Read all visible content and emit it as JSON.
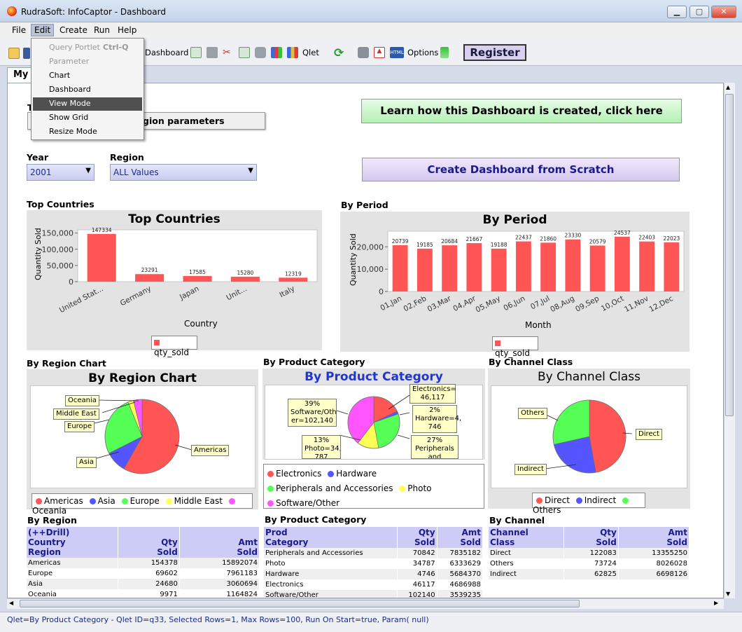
{
  "window": {
    "title": "RudraSoft: InfoCaptor - Dashboard"
  },
  "menubar": [
    "File",
    "Edit",
    "Create",
    "Run",
    "Help"
  ],
  "toolbar": {
    "dashboard_label": "Dashboard",
    "qlet_label": "Qlet",
    "options_label": "Options",
    "register_label": "Register"
  },
  "edit_menu": {
    "items": [
      {
        "label": "Query Portlet",
        "shortcut": "Ctrl-Q",
        "disabled": true
      },
      {
        "label": "Parameter",
        "disabled": true
      },
      {
        "label": "Chart"
      },
      {
        "label": "Dashboard"
      },
      {
        "label": "View Mode",
        "selected": true
      },
      {
        "label": "Show Grid"
      },
      {
        "label": "Resize Mode"
      }
    ]
  },
  "tab": {
    "label": "My"
  },
  "hidden_button": {
    "label_visible": "gion parameters",
    "prefix": "T"
  },
  "buttons": {
    "learn": "Learn how this Dashboard is created, click here",
    "scratch": "Create Dashboard from Scratch"
  },
  "filters": {
    "year_label": "Year",
    "year_value": "2001",
    "region_label": "Region",
    "region_value": "ALL Values"
  },
  "sections": {
    "top_countries": "Top Countries",
    "by_period": "By Period",
    "by_region_chart": "By Region Chart",
    "by_product_category": "By Product Category",
    "by_channel_class": "By Channel Class",
    "by_region": "By Region",
    "by_product_category_table": "By Product Category",
    "by_channel": "By Channel"
  },
  "chart_data": [
    {
      "id": "top_countries",
      "type": "bar",
      "title": "Top Countries",
      "xlabel": "Country",
      "ylabel": "Quantity Sold",
      "categories": [
        "United Stat...",
        "Germany",
        "Japan",
        "Unit...",
        "Italy"
      ],
      "values": [
        147334,
        23291,
        17585,
        15280,
        12319
      ],
      "labels": [
        "147334",
        "23291",
        "17585",
        "15280",
        "12319"
      ],
      "yticks": [
        "150,000",
        "100,000",
        "50,000",
        "0"
      ],
      "ylim": [
        0,
        160000
      ],
      "legend": "qty_sold",
      "color": "#ff5555"
    },
    {
      "id": "by_period",
      "type": "bar",
      "title": "By Period",
      "xlabel": "Month",
      "ylabel": "Quantity Sold",
      "categories": [
        "01,Jan",
        "02,Feb",
        "03,Mar",
        "04,Apr",
        "05,May",
        "06,Jun",
        "07,Jul",
        "08,Aug",
        "09,Sep",
        "10,Oct",
        "11,Nov",
        "12,Dec"
      ],
      "values": [
        20739,
        19185,
        20684,
        21667,
        19188,
        22437,
        21860,
        23330,
        20579,
        24537,
        22403,
        22023
      ],
      "labels": [
        "20739",
        "19185",
        "20684",
        "21667",
        "19188",
        "22437",
        "21860",
        "23330",
        "20579",
        "24537",
        "22403",
        "22023"
      ],
      "yticks": [
        "20,000",
        "10,000",
        "0"
      ],
      "ylim": [
        0,
        27000
      ],
      "legend": "qty_sold",
      "color": "#ff5555"
    },
    {
      "id": "by_region_chart",
      "type": "pie",
      "title": "By Region Chart",
      "categories": [
        "Americas",
        "Asia",
        "Europe",
        "Middle East",
        "Oceania"
      ],
      "values": [
        154378,
        24680,
        69602,
        6432,
        9971
      ],
      "colors": [
        "#ff5555",
        "#5555ff",
        "#55ff55",
        "#ffff55",
        "#ff55ff"
      ]
    },
    {
      "id": "by_product_category",
      "type": "pie",
      "title": "By Product Category",
      "categories": [
        "Electronics",
        "Hardware",
        "Peripherals and Accessories",
        "Photo",
        "Software/Other"
      ],
      "values": [
        46117,
        4746,
        70842,
        34787,
        102140
      ],
      "colors": [
        "#ff5555",
        "#5555ff",
        "#55ff55",
        "#ffff55",
        "#ff55ff"
      ],
      "annotations": {
        "electronics": [
          "Electronics=",
          "46,117"
        ],
        "hardware": [
          "2%",
          "Hardware=4,",
          "746"
        ],
        "peripherals": [
          "27%",
          "Peripherals",
          "and"
        ],
        "photo": [
          "13%",
          "Photo=34,",
          "787"
        ],
        "software": [
          "39%",
          "Software/Oth",
          "er=102,140"
        ]
      }
    },
    {
      "id": "by_channel_class",
      "type": "pie",
      "title": "By Channel Class",
      "categories": [
        "Direct",
        "Indirect",
        "Others"
      ],
      "values": [
        122083,
        62825,
        73724
      ],
      "colors": [
        "#ff5555",
        "#5555ff",
        "#55ff55"
      ]
    }
  ],
  "tables": {
    "by_region": {
      "headers": [
        "(++Drill)\nCountry\nRegion",
        "Qty\nSold",
        "Amt\nSold"
      ],
      "rows": [
        [
          "Americas",
          "154378",
          "15892074"
        ],
        [
          "Europe",
          "69602",
          "7961183"
        ],
        [
          "Asia",
          "24680",
          "3060694"
        ],
        [
          "Oceania",
          "9971",
          "1164824"
        ]
      ]
    },
    "by_product": {
      "headers": [
        "Prod\nCategory",
        "Qty\nSold",
        "Amt\nSold"
      ],
      "rows": [
        [
          "Peripherals and Accessories",
          "70842",
          "7835182"
        ],
        [
          "Photo",
          "34787",
          "6333629"
        ],
        [
          "Hardware",
          "4746",
          "5684370"
        ],
        [
          "Electronics",
          "46117",
          "4686988"
        ],
        [
          "Software/Other",
          "102140",
          "3539235"
        ]
      ]
    },
    "by_channel": {
      "headers": [
        "Channel\nClass",
        "Qty\nSold",
        "Amt\nSold"
      ],
      "rows": [
        [
          "Direct",
          "122083",
          "13355250"
        ],
        [
          "Others",
          "73724",
          "8026028"
        ],
        [
          "Indirect",
          "62825",
          "6698126"
        ]
      ]
    }
  },
  "status": "Qlet=By Product Category - Qlet ID=q33, Selected Rows=1, Max Rows=100, Run On Start=true, Param( null)"
}
